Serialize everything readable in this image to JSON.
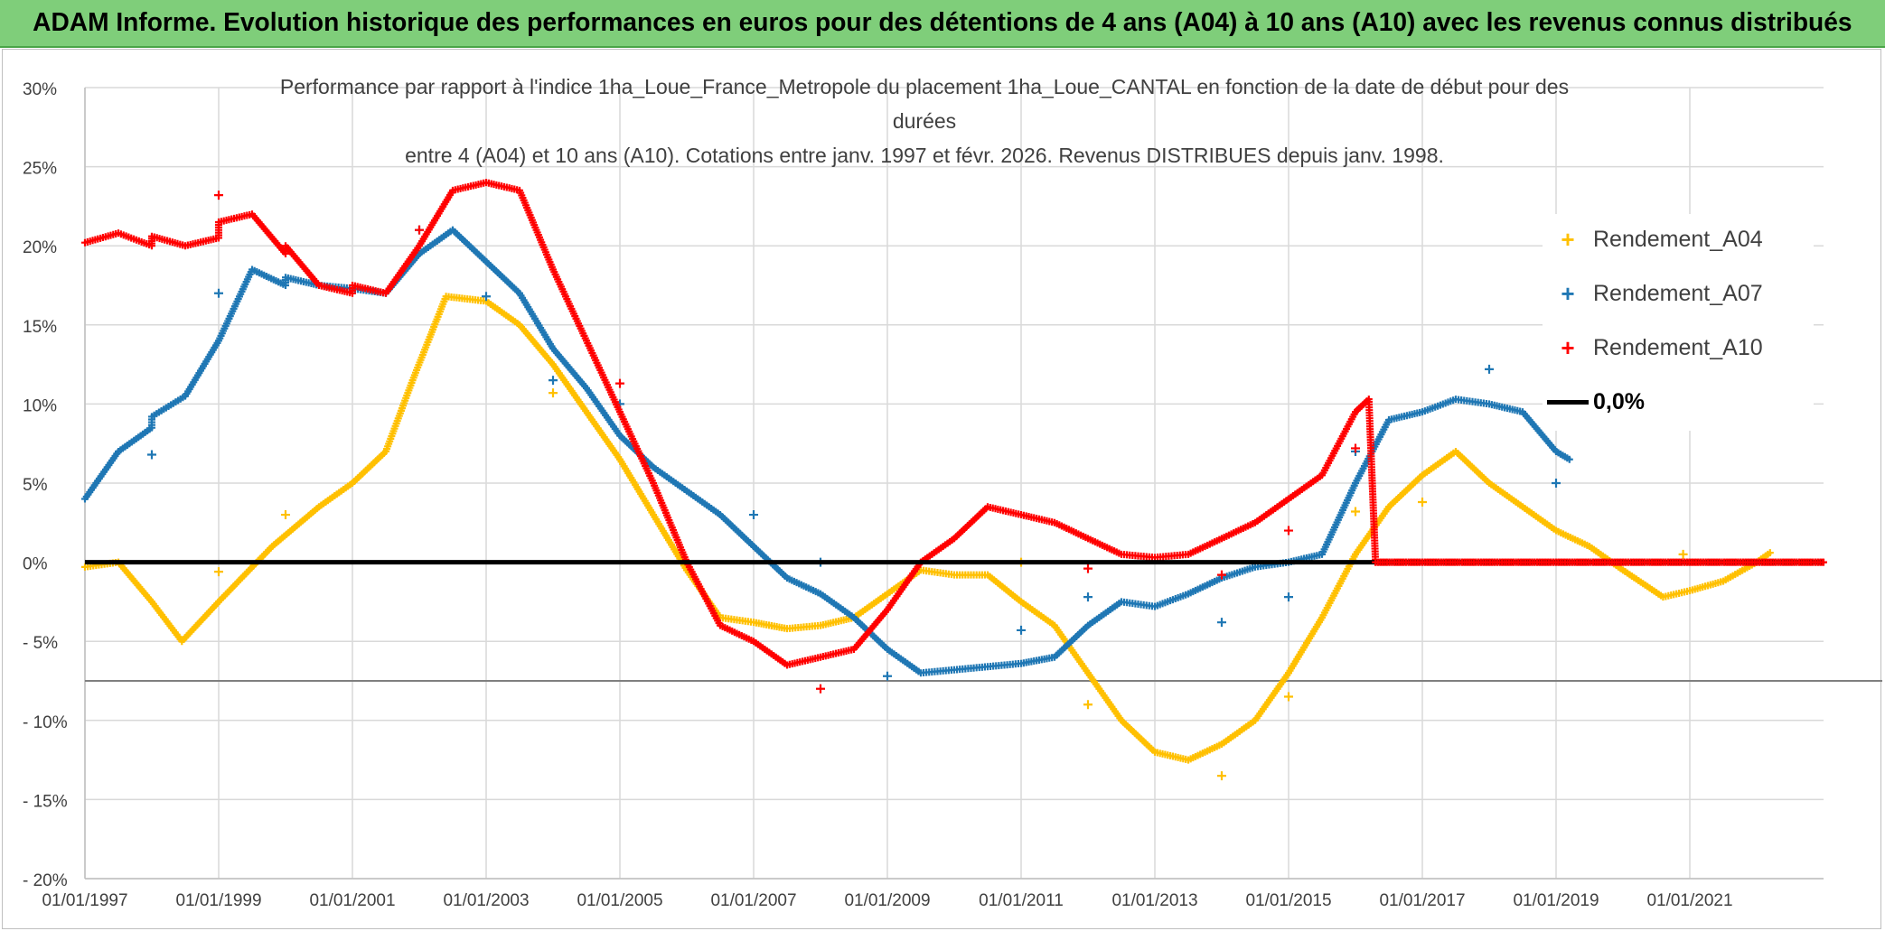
{
  "header": {
    "banner": "ADAM Informe. Evolution historique des performances en euros pour des détentions de 4 ans (A04) à 10 ans (A10) avec les revenus connus distribués"
  },
  "chart_data": {
    "type": "scatter",
    "title_lines": [
      "Performance par rapport à l'indice 1ha_Loue_France_Metropole  du placement 1ha_Loue_CANTAL en fonction de la date de début pour des",
      "durées",
      "entre 4 (A04) et 10 ans (A10). Cotations entre janv. 1997 et févr. 2026. Revenus DISTRIBUES depuis janv. 1998."
    ],
    "xlabel": "",
    "ylabel": "",
    "xlim": [
      1997.0,
      2023.0
    ],
    "ylim": [
      -20,
      30
    ],
    "y_ticks": [
      -20,
      -15,
      -10,
      -5,
      0,
      5,
      10,
      15,
      20,
      25,
      30
    ],
    "y_tick_labels": [
      "- 20%",
      "- 15%",
      "- 10%",
      "- 5%",
      "0%",
      "5%",
      "10%",
      "15%",
      "20%",
      "25%",
      "30%"
    ],
    "x_ticks": [
      1997,
      1999,
      2001,
      2003,
      2005,
      2007,
      2009,
      2011,
      2013,
      2015,
      2017,
      2019,
      2021
    ],
    "x_tick_labels": [
      "01/01/1997",
      "01/01/1999",
      "01/01/2001",
      "01/01/2003",
      "01/01/2005",
      "01/01/2007",
      "01/01/2009",
      "01/01/2011",
      "01/01/2013",
      "01/01/2015",
      "01/01/2017",
      "01/01/2019",
      "01/01/2021"
    ],
    "grid": true,
    "legend_position": "right",
    "series": [
      {
        "name": "Rendement_A04",
        "color": "#ffc000",
        "marker": "+",
        "points": [
          [
            1997.0,
            -0.3
          ],
          [
            1997.5,
            0.0
          ],
          [
            1998.0,
            -2.5
          ],
          [
            1998.45,
            -5.0
          ],
          [
            1999.0,
            -2.5
          ],
          [
            1999.8,
            1.0
          ],
          [
            2000.5,
            3.5
          ],
          [
            2001.0,
            5.0
          ],
          [
            2001.5,
            7.0
          ],
          [
            2001.9,
            11.5
          ],
          [
            2002.4,
            16.8
          ],
          [
            2003.0,
            16.5
          ],
          [
            2003.5,
            15.0
          ],
          [
            2004.0,
            12.5
          ],
          [
            2005.0,
            6.5
          ],
          [
            2005.5,
            3.0
          ],
          [
            2006.0,
            -0.5
          ],
          [
            2006.5,
            -3.5
          ],
          [
            2007.0,
            -3.8
          ],
          [
            2007.5,
            -4.2
          ],
          [
            2008.0,
            -4.0
          ],
          [
            2008.5,
            -3.5
          ],
          [
            2009.0,
            -2.0
          ],
          [
            2009.5,
            -0.5
          ],
          [
            2010.0,
            -0.8
          ],
          [
            2010.5,
            -0.8
          ],
          [
            2011.0,
            -2.5
          ],
          [
            2011.5,
            -4.0
          ],
          [
            2012.0,
            -7.0
          ],
          [
            2012.5,
            -10.0
          ],
          [
            2013.0,
            -12.0
          ],
          [
            2013.5,
            -12.5
          ],
          [
            2014.0,
            -11.5
          ],
          [
            2014.5,
            -10.0
          ],
          [
            2015.0,
            -7.0
          ],
          [
            2015.5,
            -3.5
          ],
          [
            2016.0,
            0.5
          ],
          [
            2016.5,
            3.5
          ],
          [
            2017.0,
            5.5
          ],
          [
            2017.5,
            7.0
          ],
          [
            2018.0,
            5.0
          ],
          [
            2018.5,
            3.5
          ],
          [
            2019.0,
            2.0
          ],
          [
            2019.5,
            1.0
          ],
          [
            2020.0,
            -0.5
          ],
          [
            2020.6,
            -2.2
          ],
          [
            2021.0,
            -1.8
          ],
          [
            2021.5,
            -1.2
          ],
          [
            2022.0,
            0.0
          ],
          [
            2022.2,
            0.6
          ]
        ],
        "outliers": [
          [
            1999.0,
            -0.6
          ],
          [
            2000.0,
            3.0
          ],
          [
            2004.0,
            10.7
          ],
          [
            2011.0,
            0.0
          ],
          [
            2012.0,
            -9.0
          ],
          [
            2014.0,
            -13.5
          ],
          [
            2015.0,
            -8.5
          ],
          [
            2016.0,
            3.2
          ],
          [
            2017.0,
            3.8
          ],
          [
            2020.9,
            0.5
          ]
        ]
      },
      {
        "name": "Rendement_A07",
        "color": "#1f77b4",
        "marker": "+",
        "points": [
          [
            1997.0,
            4.0
          ],
          [
            1997.5,
            7.0
          ],
          [
            1998.0,
            8.5
          ],
          [
            1998.0,
            9.2
          ],
          [
            1998.5,
            10.5
          ],
          [
            1999.0,
            14.0
          ],
          [
            1999.5,
            18.5
          ],
          [
            2000.0,
            17.5
          ],
          [
            2000.0,
            18.0
          ],
          [
            2000.5,
            17.5
          ],
          [
            2001.0,
            17.3
          ],
          [
            2001.5,
            17.0
          ],
          [
            2002.0,
            19.5
          ],
          [
            2002.5,
            21.0
          ],
          [
            2003.0,
            19.0
          ],
          [
            2003.5,
            17.0
          ],
          [
            2004.0,
            13.5
          ],
          [
            2004.5,
            11.0
          ],
          [
            2005.0,
            8.0
          ],
          [
            2005.5,
            6.0
          ],
          [
            2006.0,
            4.5
          ],
          [
            2006.5,
            3.0
          ],
          [
            2007.0,
            1.0
          ],
          [
            2007.5,
            -1.0
          ],
          [
            2008.0,
            -2.0
          ],
          [
            2008.5,
            -3.5
          ],
          [
            2009.0,
            -5.5
          ],
          [
            2009.5,
            -7.0
          ],
          [
            2010.0,
            -6.8
          ],
          [
            2010.5,
            -6.6
          ],
          [
            2011.0,
            -6.4
          ],
          [
            2011.5,
            -6.0
          ],
          [
            2012.0,
            -4.0
          ],
          [
            2012.5,
            -2.5
          ],
          [
            2013.0,
            -2.8
          ],
          [
            2013.5,
            -2.0
          ],
          [
            2014.0,
            -1.0
          ],
          [
            2014.5,
            -0.3
          ],
          [
            2015.0,
            0.0
          ],
          [
            2015.5,
            0.5
          ],
          [
            2016.0,
            5.0
          ],
          [
            2016.5,
            9.0
          ],
          [
            2017.0,
            9.5
          ],
          [
            2017.5,
            10.3
          ],
          [
            2018.0,
            10.0
          ],
          [
            2018.5,
            9.5
          ],
          [
            2019.0,
            7.0
          ],
          [
            2019.2,
            6.5
          ]
        ],
        "outliers": [
          [
            1998.0,
            6.8
          ],
          [
            1999.0,
            17.0
          ],
          [
            2002.0,
            21.0
          ],
          [
            2003.0,
            16.8
          ],
          [
            2004.0,
            11.5
          ],
          [
            2005.0,
            10.0
          ],
          [
            2007.0,
            3.0
          ],
          [
            2008.0,
            0.0
          ],
          [
            2009.0,
            -7.2
          ],
          [
            2011.0,
            -4.3
          ],
          [
            2012.0,
            -2.2
          ],
          [
            2014.0,
            -3.8
          ],
          [
            2015.0,
            -2.2
          ],
          [
            2016.0,
            7.0
          ],
          [
            2018.0,
            12.2
          ],
          [
            2019.0,
            5.0
          ]
        ]
      },
      {
        "name": "Rendement_A10",
        "color": "#ff0000",
        "marker": "+",
        "points": [
          [
            1997.0,
            20.2
          ],
          [
            1997.5,
            20.8
          ],
          [
            1998.0,
            20.0
          ],
          [
            1998.0,
            20.6
          ],
          [
            1998.5,
            20.0
          ],
          [
            1999.0,
            20.5
          ],
          [
            1999.0,
            21.5
          ],
          [
            1999.5,
            22.0
          ],
          [
            2000.0,
            19.5
          ],
          [
            2000.0,
            20.0
          ],
          [
            2000.5,
            17.5
          ],
          [
            2001.0,
            17.0
          ],
          [
            2001.0,
            17.5
          ],
          [
            2001.5,
            17.0
          ],
          [
            2002.0,
            20.0
          ],
          [
            2002.5,
            23.5
          ],
          [
            2003.0,
            24.0
          ],
          [
            2003.5,
            23.5
          ],
          [
            2004.0,
            18.5
          ],
          [
            2004.5,
            14.0
          ],
          [
            2005.0,
            9.5
          ],
          [
            2005.5,
            5.0
          ],
          [
            2006.0,
            0.0
          ],
          [
            2006.5,
            -4.0
          ],
          [
            2007.0,
            -5.0
          ],
          [
            2007.5,
            -6.5
          ],
          [
            2008.0,
            -6.0
          ],
          [
            2008.5,
            -5.5
          ],
          [
            2009.0,
            -3.0
          ],
          [
            2009.5,
            0.0
          ],
          [
            2010.0,
            1.5
          ],
          [
            2010.5,
            3.5
          ],
          [
            2011.0,
            3.0
          ],
          [
            2011.5,
            2.5
          ],
          [
            2012.0,
            1.5
          ],
          [
            2012.5,
            0.5
          ],
          [
            2013.0,
            0.3
          ],
          [
            2013.5,
            0.5
          ],
          [
            2014.0,
            1.5
          ],
          [
            2014.5,
            2.5
          ],
          [
            2015.0,
            4.0
          ],
          [
            2015.5,
            5.5
          ],
          [
            2016.0,
            9.5
          ],
          [
            2016.2,
            10.3
          ],
          [
            2016.3,
            0.0
          ],
          [
            2017.0,
            0.0
          ],
          [
            2018.0,
            0.0
          ],
          [
            2019.0,
            0.0
          ],
          [
            2020.0,
            0.0
          ],
          [
            2021.0,
            0.0
          ],
          [
            2022.0,
            0.0
          ],
          [
            2023.0,
            0.0
          ]
        ],
        "outliers": [
          [
            1999.0,
            23.2
          ],
          [
            2002.0,
            21.0
          ],
          [
            2005.0,
            11.3
          ],
          [
            2008.0,
            -8.0
          ],
          [
            2012.0,
            -0.4
          ],
          [
            2014.0,
            -0.8
          ],
          [
            2015.0,
            2.0
          ],
          [
            2016.0,
            7.2
          ]
        ]
      }
    ],
    "reference_line": {
      "name": "0,0%",
      "y": 0,
      "color": "#000000"
    },
    "bands": [
      {
        "y": -7.5,
        "color": "#7f7f7f"
      }
    ]
  }
}
